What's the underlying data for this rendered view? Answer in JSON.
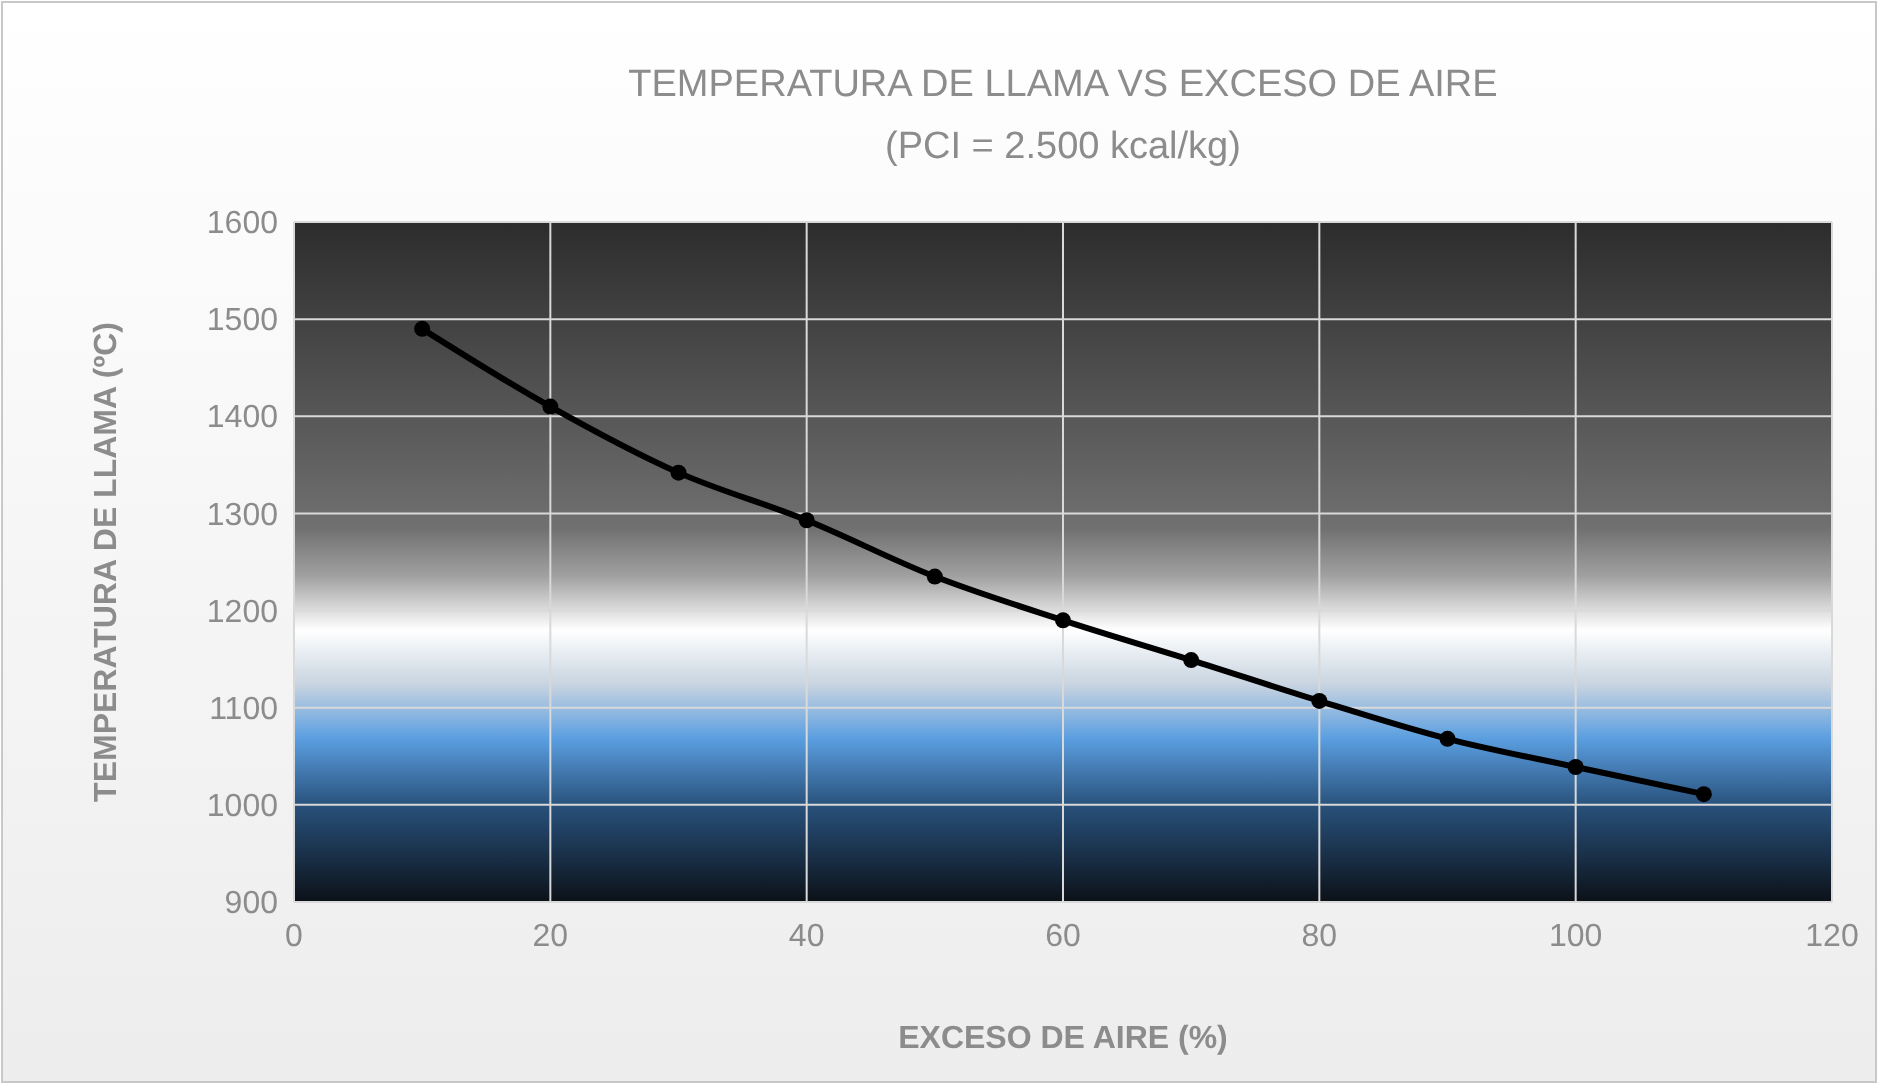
{
  "chart_data": {
    "type": "line",
    "title": "TEMPERATURA DE LLAMA VS EXCESO DE AIRE",
    "subtitle": "(PCI =  2.500 kcal/kg)",
    "xlabel": "EXCESO DE AIRE (%)",
    "ylabel": "TEMPERATURA DE LLAMA (ºC)",
    "x": [
      10,
      20,
      30,
      40,
      50,
      60,
      70,
      80,
      90,
      100,
      110
    ],
    "series": [
      {
        "color": "#000000",
        "values": [
          1490,
          1410,
          1342,
          1293,
          1235,
          1190,
          1149,
          1107,
          1068,
          1039,
          1011
        ]
      }
    ],
    "xlim": [
      0,
      120
    ],
    "xticks": [
      0,
      20,
      40,
      60,
      80,
      100,
      120
    ],
    "ylim": [
      900,
      1600
    ],
    "yticks": [
      900,
      1000,
      1100,
      1200,
      1300,
      1400,
      1500,
      1600
    ],
    "grid": true,
    "marker": "circle",
    "line_style": "solid"
  }
}
